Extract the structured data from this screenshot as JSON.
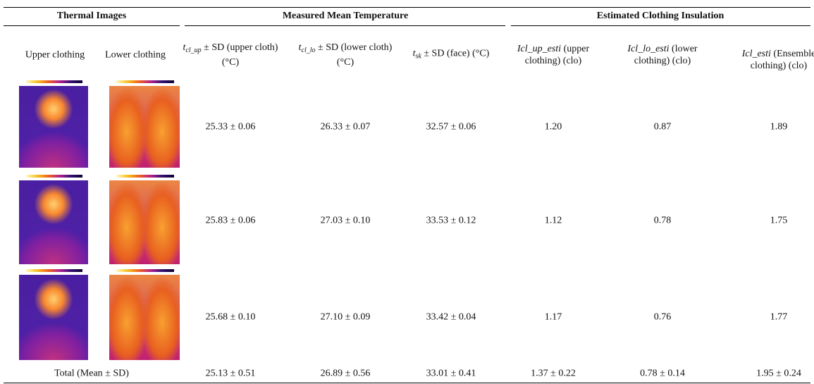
{
  "header": {
    "groups": [
      "Thermal Images",
      "Measured Mean Temperature",
      "Estimated Clothing Insulation"
    ],
    "columns": [
      {
        "text": "Upper clothing"
      },
      {
        "text": "Lower clothing"
      },
      {
        "symbol": "t",
        "sub": "cl_up",
        "text": "± SD (upper cloth) (°C)"
      },
      {
        "symbol": "t",
        "sub": "cl_lo",
        "text": "± SD (lower cloth) (°C)"
      },
      {
        "symbol": "t",
        "sub": "sk",
        "text": "± SD (face) (°C)"
      },
      {
        "symbol": "Icl_up_esti",
        "text": "(upper clothing) (clo)"
      },
      {
        "symbol": "Icl_lo_esti",
        "text": "(lower clothing) (clo)"
      },
      {
        "symbol": "Icl_esti",
        "text": "(Ensemble clothing) (clo)"
      }
    ]
  },
  "table": {
    "rows": [
      [
        "25.33 ± 0.06",
        "26.33 ± 0.07",
        "32.57 ± 0.06",
        "1.20",
        "0.87",
        "1.89"
      ],
      [
        "25.83 ± 0.06",
        "27.03 ± 0.10",
        "33.53 ± 0.12",
        "1.12",
        "0.78",
        "1.75"
      ],
      [
        "25.68 ± 0.10",
        "27.10 ± 0.09",
        "33.42 ± 0.04",
        "1.17",
        "0.76",
        "1.77"
      ]
    ],
    "total": {
      "label": "Total (Mean ± SD)",
      "values": [
        "25.13 ± 0.51",
        "26.89 ± 0.56",
        "33.01 ± 0.41",
        "1.37 ± 0.22",
        "0.78 ± 0.14",
        "1.95 ± 0.24"
      ]
    }
  }
}
